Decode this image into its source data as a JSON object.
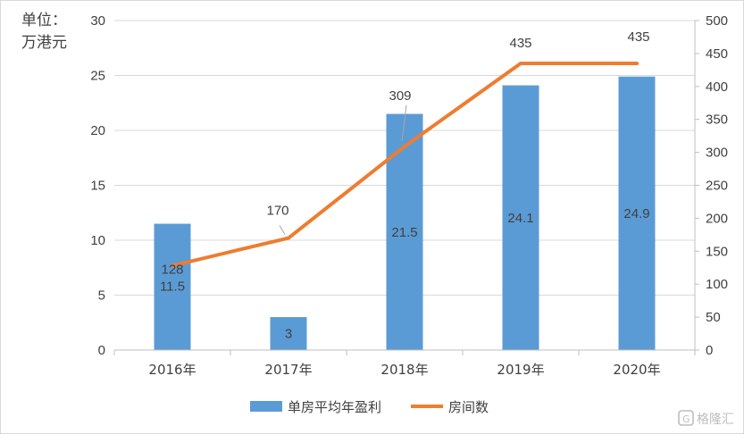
{
  "chart_data": {
    "type": "bar",
    "categories": [
      "2016年",
      "2017年",
      "2018年",
      "2019年",
      "2020年"
    ],
    "unit_label_line1": "单位：",
    "unit_label_line2": "万港元",
    "y_left": {
      "min": 0,
      "max": 30,
      "ticks": [
        0,
        5,
        10,
        15,
        20,
        25,
        30
      ]
    },
    "y_right": {
      "min": 0,
      "max": 500,
      "ticks": [
        0,
        50,
        100,
        150,
        200,
        250,
        300,
        350,
        400,
        450,
        500
      ]
    },
    "grid": true,
    "legend_position": "bottom",
    "series": [
      {
        "name": "单房平均年盈利",
        "kind": "bar",
        "axis": "left",
        "color": "#5b9bd5",
        "values": [
          11.5,
          3,
          21.5,
          24.1,
          24.9
        ],
        "labels": [
          "11.5",
          "3",
          "21.5",
          "24.1",
          "24.9"
        ]
      },
      {
        "name": "房间数",
        "kind": "line",
        "axis": "right",
        "color": "#ed7d31",
        "values": [
          128,
          170,
          309,
          435,
          435
        ],
        "labels": [
          "128",
          "170",
          "309",
          "435",
          "435"
        ]
      }
    ]
  },
  "watermark": {
    "icon": "gelonghui-logo-icon",
    "text": "格隆汇"
  }
}
